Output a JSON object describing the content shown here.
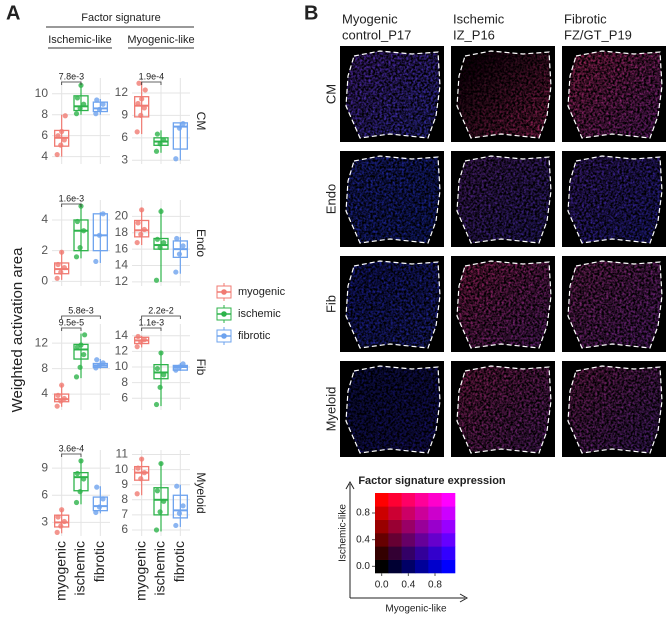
{
  "panel_a": {
    "letter": "A",
    "header": "Factor signature",
    "subheaders": [
      "Ischemic-like",
      "Myogenic-like"
    ],
    "ylabel": "Weighted activation area",
    "rows": [
      "CM",
      "Endo",
      "Fib",
      "Myeloid"
    ],
    "groups": [
      {
        "name": "myogenic",
        "color": "#f07a72"
      },
      {
        "name": "ischemic",
        "color": "#2db34a"
      },
      {
        "name": "fibrotic",
        "color": "#6ea3ee"
      }
    ]
  },
  "chart_data": [
    {
      "type": "box",
      "ylim": [
        3.3,
        11.5
      ],
      "yticks": [
        4,
        6,
        8,
        10
      ],
      "grid": true,
      "boxes": [
        {
          "low": 4,
          "q1": 5,
          "median": 5.8,
          "q3": 6.5,
          "high": 8,
          "points": [
            4.2,
            5.1,
            5.6,
            6,
            6.4,
            7.9
          ]
        },
        {
          "low": 8,
          "q1": 8.4,
          "median": 8.8,
          "q3": 9.8,
          "high": 11,
          "points": [
            8.1,
            8.6,
            9,
            9.6,
            10.8
          ]
        },
        {
          "low": 8,
          "q1": 8.3,
          "median": 8.6,
          "q3": 9.2,
          "high": 9.5,
          "points": [
            8.1,
            8.5,
            9,
            9.4
          ]
        }
      ],
      "annotations": [
        {
          "label": "7.8e-3",
          "pair": [
            0,
            1
          ]
        }
      ]
    },
    {
      "type": "box",
      "ylim": [
        2.5,
        14
      ],
      "yticks": [
        3,
        6,
        9,
        12
      ],
      "grid": true,
      "boxes": [
        {
          "low": 6.5,
          "q1": 8.8,
          "median": 10.3,
          "q3": 11.5,
          "high": 13.5,
          "points": [
            6.8,
            9,
            10,
            10.6,
            11.2,
            12.4,
            13.3
          ]
        },
        {
          "low": 4,
          "q1": 5,
          "median": 5.5,
          "q3": 6,
          "high": 7,
          "points": [
            4.2,
            5.2,
            5.7,
            6.5
          ]
        },
        {
          "low": 3,
          "q1": 4.5,
          "median": 7.5,
          "q3": 8,
          "high": 8,
          "points": [
            3.2,
            7.3,
            7.9
          ]
        }
      ],
      "annotations": [
        {
          "label": "1.9e-4",
          "pair": [
            0,
            1
          ]
        }
      ]
    },
    {
      "type": "box",
      "ylim": [
        -0.3,
        5.3
      ],
      "yticks": [
        0,
        2,
        4
      ],
      "grid": true,
      "boxes": [
        {
          "low": 0.1,
          "q1": 0.5,
          "median": 0.8,
          "q3": 1.2,
          "high": 2,
          "points": [
            0.2,
            0.6,
            0.9,
            1.1,
            1.9
          ]
        },
        {
          "low": 1.5,
          "q1": 2,
          "median": 3.3,
          "q3": 4,
          "high": 5,
          "points": [
            1.6,
            2.2,
            3.3,
            3.9,
            4.9
          ]
        },
        {
          "low": 1.2,
          "q1": 2,
          "median": 3,
          "q3": 4.4,
          "high": 4.5,
          "points": [
            1.3,
            3,
            4.4
          ]
        }
      ],
      "annotations": [
        {
          "label": "1.6e-3",
          "pair": [
            0,
            1
          ]
        }
      ]
    },
    {
      "type": "box",
      "ylim": [
        11.5,
        22
      ],
      "yticks": [
        12,
        14,
        16,
        18,
        20
      ],
      "grid": true,
      "boxes": [
        {
          "low": 16.5,
          "q1": 17.5,
          "median": 18.3,
          "q3": 19.5,
          "high": 21,
          "points": [
            16.8,
            17.8,
            18.4,
            19.2,
            20.8
          ]
        },
        {
          "low": 12,
          "q1": 16,
          "median": 16.5,
          "q3": 17.3,
          "high": 21,
          "points": [
            12.2,
            16.2,
            16.8,
            17.2,
            20.6
          ]
        },
        {
          "low": 13,
          "q1": 15,
          "median": 16,
          "q3": 17,
          "high": 17.5,
          "points": [
            13.2,
            15.4,
            16.4,
            17.3
          ]
        }
      ],
      "annotations": []
    },
    {
      "type": "box",
      "ylim": [
        1.5,
        15
      ],
      "yticks": [
        4,
        8,
        12
      ],
      "grid": true,
      "boxes": [
        {
          "low": 2,
          "q1": 2.8,
          "median": 3.2,
          "q3": 4,
          "high": 5.5,
          "points": [
            2.1,
            2.9,
            3.3,
            3.8,
            5.4
          ]
        },
        {
          "low": 6.5,
          "q1": 9.5,
          "median": 11,
          "q3": 11.8,
          "high": 13.5,
          "points": [
            6.7,
            8.2,
            10.2,
            11.4,
            11.7,
            13.3
          ]
        },
        {
          "low": 8,
          "q1": 8.2,
          "median": 8.5,
          "q3": 8.8,
          "high": 9.5,
          "points": [
            8.1,
            8.5,
            8.9,
            9.4
          ]
        }
      ],
      "annotations": [
        {
          "label": "9.5e-5",
          "pair": [
            0,
            1
          ]
        },
        {
          "label": "5.8e-3",
          "pair": [
            0,
            2
          ]
        }
      ]
    },
    {
      "type": "box",
      "ylim": [
        4.5,
        15.5
      ],
      "yticks": [
        6,
        8,
        10,
        12,
        14
      ],
      "grid": true,
      "boxes": [
        {
          "low": 12.5,
          "q1": 13,
          "median": 13.4,
          "q3": 13.8,
          "high": 14,
          "points": [
            12.6,
            13.2,
            13.5,
            13.9
          ]
        },
        {
          "low": 5,
          "q1": 8.5,
          "median": 9.3,
          "q3": 10.3,
          "high": 12,
          "points": [
            5.2,
            7.4,
            9,
            9.8,
            11.8
          ]
        },
        {
          "low": 9.5,
          "q1": 9.6,
          "median": 10,
          "q3": 10.2,
          "high": 10.5,
          "points": [
            9.6,
            10,
            10.4
          ]
        }
      ],
      "annotations": [
        {
          "label": "1.1e-3",
          "pair": [
            0,
            1
          ]
        },
        {
          "label": "2.2e-2",
          "pair": [
            0,
            2
          ]
        }
      ]
    },
    {
      "type": "box",
      "ylim": [
        1.5,
        11
      ],
      "yticks": [
        3,
        6,
        9
      ],
      "grid": true,
      "boxes": [
        {
          "low": 1.8,
          "q1": 2.5,
          "median": 3,
          "q3": 3.8,
          "high": 4.5,
          "points": [
            1.9,
            2.6,
            3.1,
            3.6,
            4.4
          ]
        },
        {
          "low": 5,
          "q1": 6.5,
          "median": 8,
          "q3": 8.5,
          "high": 10,
          "points": [
            5.2,
            6.4,
            7.8,
            8.4,
            9.8
          ]
        },
        {
          "low": 4,
          "q1": 4.3,
          "median": 4.8,
          "q3": 5.8,
          "high": 7,
          "points": [
            4.1,
            4.7,
            5.6,
            6.9
          ]
        }
      ],
      "annotations": [
        {
          "label": "3.6e-4",
          "pair": [
            0,
            1
          ]
        }
      ]
    },
    {
      "type": "box",
      "ylim": [
        5.6,
        11.3
      ],
      "yticks": [
        6,
        7,
        8,
        9,
        10,
        11
      ],
      "grid": true,
      "boxes": [
        {
          "low": 8.3,
          "q1": 9.3,
          "median": 9.8,
          "q3": 10.2,
          "high": 10.8,
          "points": [
            8.4,
            9.4,
            9.8,
            10.1,
            10.7
          ]
        },
        {
          "low": 5.9,
          "q1": 7,
          "median": 8,
          "q3": 8.8,
          "high": 10.5,
          "points": [
            6,
            7.2,
            7.9,
            8.6,
            10.4
          ]
        },
        {
          "low": 6.2,
          "q1": 6.8,
          "median": 7.3,
          "q3": 8.3,
          "high": 9,
          "points": [
            6.3,
            7.1,
            7.6,
            8.9
          ]
        }
      ],
      "annotations": []
    }
  ],
  "panel_b": {
    "letter": "B",
    "columns": [
      [
        "Myogenic",
        "control_P17"
      ],
      [
        "Ischemic",
        "IZ_P16"
      ],
      [
        "Fibrotic",
        "FZ/GT_P19"
      ]
    ],
    "rows": [
      "CM",
      "Endo",
      "Fib",
      "Myeloid"
    ],
    "colormap": {
      "title": "Factor signature expression",
      "xlabel": "Myogenic-like",
      "ylabel": "Ischemic-like",
      "xlim": [
        -0.1,
        1.1
      ],
      "ylim": [
        -0.1,
        1.1
      ],
      "xticks": [
        {
          "value": 0,
          "label": "0.0"
        },
        0.4,
        0.8
      ],
      "yticks": [
        {
          "value": 0,
          "label": "0.0"
        },
        0.4,
        0.8
      ]
    }
  }
}
